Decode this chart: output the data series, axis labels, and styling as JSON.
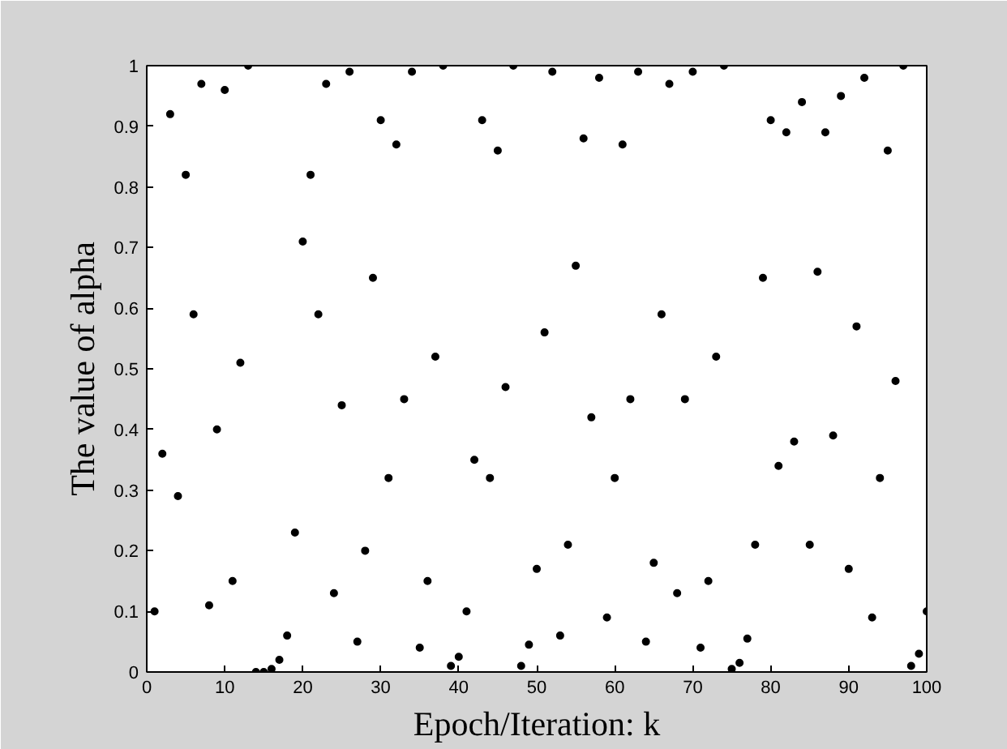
{
  "chart_data": {
    "type": "scatter",
    "xlabel": "Epoch/Iteration: k",
    "ylabel": "The value of alpha",
    "x": [
      1,
      2,
      3,
      4,
      5,
      6,
      7,
      8,
      9,
      10,
      11,
      12,
      13,
      14,
      15,
      16,
      17,
      18,
      19,
      20,
      21,
      22,
      23,
      24,
      25,
      26,
      27,
      28,
      29,
      30,
      31,
      32,
      33,
      34,
      35,
      36,
      37,
      38,
      39,
      40,
      41,
      42,
      43,
      44,
      45,
      46,
      47,
      48,
      49,
      50,
      51,
      52,
      53,
      54,
      55,
      56,
      57,
      58,
      59,
      60,
      61,
      62,
      63,
      64,
      65,
      66,
      67,
      68,
      69,
      70,
      71,
      72,
      73,
      74,
      75,
      76,
      77,
      78,
      79,
      80,
      81,
      82,
      83,
      84,
      85,
      86,
      87,
      88,
      89,
      90,
      91,
      92,
      93,
      94,
      95,
      96,
      97,
      98,
      99,
      100
    ],
    "series": [
      {
        "color": "#000000",
        "values": [
          0.1,
          0.36,
          0.92,
          0.29,
          0.82,
          0.59,
          0.97,
          0.11,
          0.4,
          0.96,
          0.15,
          0.51,
          1.0,
          0.0,
          0.0,
          0.005,
          0.02,
          0.06,
          0.23,
          0.71,
          0.82,
          0.59,
          0.97,
          0.13,
          0.44,
          0.99,
          0.05,
          0.2,
          0.65,
          0.91,
          0.32,
          0.87,
          0.45,
          0.99,
          0.04,
          0.15,
          0.52,
          1.0,
          0.01,
          0.025,
          0.1,
          0.35,
          0.91,
          0.32,
          0.86,
          0.47,
          1.0,
          0.01,
          0.045,
          0.17,
          0.56,
          0.99,
          0.06,
          0.21,
          0.67,
          0.88,
          0.42,
          0.98,
          0.09,
          0.32,
          0.87,
          0.45,
          0.99,
          0.05,
          0.18,
          0.59,
          0.97,
          0.13,
          0.45,
          0.99,
          0.04,
          0.15,
          0.52,
          1.0,
          0.005,
          0.015,
          0.055,
          0.21,
          0.65,
          0.91,
          0.34,
          0.89,
          0.38,
          0.94,
          0.21,
          0.66,
          0.89,
          0.39,
          0.95,
          0.17,
          0.57,
          0.98,
          0.09,
          0.32,
          0.86,
          0.48,
          1.0,
          0.01,
          0.03,
          0.1
        ]
      }
    ],
    "xlim": [
      0,
      100
    ],
    "ylim": [
      0,
      1
    ],
    "xticks": [
      0,
      10,
      20,
      30,
      40,
      50,
      60,
      70,
      80,
      90,
      100
    ],
    "yticks": [
      0,
      0.1,
      0.2,
      0.3,
      0.4,
      0.5,
      0.6,
      0.7,
      0.8,
      0.9,
      1
    ],
    "marker": "circle",
    "grid": false
  }
}
